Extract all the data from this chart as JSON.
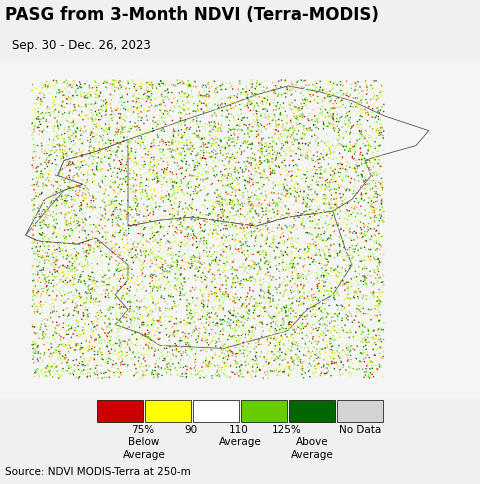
{
  "title": "PASG from 3-Month NDVI (Terra-MODIS)",
  "subtitle": "Sep. 30 - Dec. 26, 2023",
  "source_text": "Source: NDVI MODIS-Terra at 250-m",
  "legend_colors": [
    "#cc0000",
    "#ffff00",
    "#ffffff",
    "#66cc00",
    "#006600",
    "#d3d3d3"
  ],
  "legend_tick_labels": [
    "75%",
    "90",
    "110",
    "125%",
    "No Data"
  ],
  "legend_row2": [
    "Below",
    "Average",
    "",
    "Above",
    ""
  ],
  "legend_row3": [
    "Average",
    "",
    "",
    "Average",
    ""
  ],
  "ocean_color": "#aad3df",
  "land_base_color": "#f5f5f5",
  "border_color": "#555555",
  "fig_bg_color": "#f0f0f0",
  "source_bg_color": "#cccccc",
  "title_fontsize": 12,
  "subtitle_fontsize": 8.5,
  "source_fontsize": 7.5,
  "legend_fontsize": 7.5,
  "lon_min": 124.0,
  "lon_max": 131.5,
  "lat_min": 32.5,
  "lat_max": 43.8,
  "figsize": [
    4.8,
    4.85
  ],
  "dpi": 100,
  "ndvi_colors": [
    "#cc0000",
    "#ff6600",
    "#ffaa00",
    "#ffff00",
    "#ccff66",
    "#ffffff",
    "#99ff33",
    "#66cc00",
    "#338800",
    "#006600"
  ],
  "ndvi_weights": [
    0.06,
    0.04,
    0.06,
    0.08,
    0.1,
    0.2,
    0.15,
    0.12,
    0.1,
    0.09
  ]
}
